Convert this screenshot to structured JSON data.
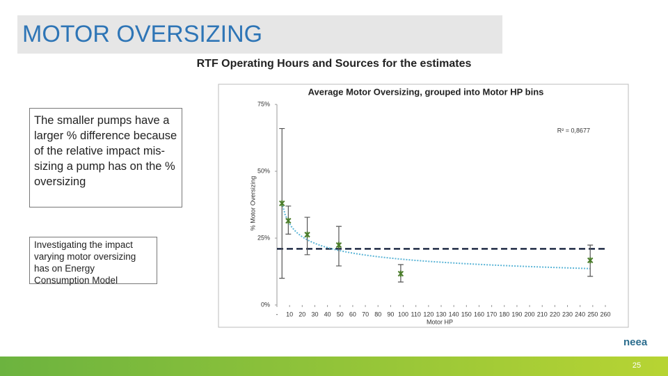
{
  "header": {
    "title": "MOTOR OVERSIZING",
    "subtitle": "RTF Operating Hours and Sources for the estimates"
  },
  "notes": {
    "main": "The smaller pumps have a larger % difference because of the relative impact mis-sizing a pump has on the % oversizing",
    "secondary": "Investigating the impact varying motor oversizing has on Energy Consumption Model"
  },
  "footer": {
    "logo": "neea",
    "page": "25"
  },
  "chart_data": {
    "type": "scatter",
    "title": "Average Motor Oversizing, grouped into Motor HP bins",
    "x_label": "Motor HP",
    "y_label": "% Motor Oversizing",
    "annotation": "R² = 0,8677",
    "trendline": "power",
    "trendline_color": "#5ab4d6",
    "reference_line": 21,
    "reference_color": "#1f2a44",
    "color": "#4a7c2a",
    "error_color": "#555555",
    "x": [
      4,
      9,
      24,
      49,
      98,
      248
    ],
    "values": [
      38,
      31.5,
      26.3,
      22.4,
      11.7,
      16.7
    ],
    "error_plus": [
      28,
      5.5,
      6.5,
      7,
      3.4,
      5.7
    ],
    "error_minus": [
      28,
      5,
      7.5,
      7.8,
      3.1,
      6
    ],
    "xlim": [
      0,
      260
    ],
    "ylim": [
      0,
      75
    ],
    "xticks": [
      {
        "value": 0,
        "label": "-"
      },
      10,
      20,
      30,
      40,
      50,
      60,
      70,
      80,
      90,
      100,
      110,
      120,
      130,
      140,
      150,
      160,
      170,
      180,
      190,
      200,
      210,
      220,
      230,
      240,
      250,
      260
    ],
    "yticks": [
      {
        "value": 0,
        "label": "0%"
      },
      {
        "value": 25,
        "label": "25%"
      },
      {
        "value": 50,
        "label": "50%"
      },
      {
        "value": 75,
        "label": "75%"
      }
    ]
  }
}
